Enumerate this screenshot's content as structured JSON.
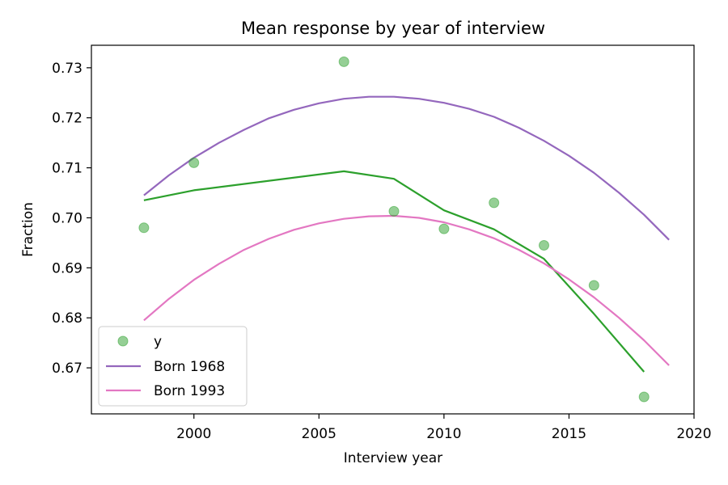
{
  "chart_data": {
    "type": "line",
    "title": "Mean response by year of interview",
    "xlabel": "Interview year",
    "ylabel": "Fraction",
    "xlim": [
      1995.9,
      2020.0
    ],
    "ylim": [
      0.6608,
      0.7345
    ],
    "xticks": [
      2000,
      2005,
      2010,
      2015,
      2020
    ],
    "yticks": [
      0.67,
      0.68,
      0.69,
      0.7,
      0.71,
      0.72,
      0.73
    ],
    "ytick_labels": [
      "0.67",
      "0.68",
      "0.69",
      "0.70",
      "0.71",
      "0.72",
      "0.73"
    ],
    "grid": false,
    "legend_position": "lower-left",
    "scatter": {
      "name": "y",
      "color": "#2ca02c",
      "x": [
        1998,
        2000,
        2006,
        2008,
        2010,
        2012,
        2014,
        2016,
        2018
      ],
      "y": [
        0.698,
        0.711,
        0.7312,
        0.7013,
        0.6978,
        0.703,
        0.6945,
        0.6865,
        0.6642
      ]
    },
    "series": [
      {
        "name": "",
        "color": "#2ca02c",
        "x": [
          1998,
          2000,
          2006,
          2008,
          2010,
          2012,
          2014,
          2016,
          2018
        ],
        "y": [
          0.7035,
          0.7055,
          0.7093,
          0.7078,
          0.7015,
          0.6977,
          0.6918,
          0.6808,
          0.6692
        ]
      },
      {
        "name": "Born 1968",
        "color": "#9467bd",
        "x": [
          1998,
          1999,
          2000,
          2001,
          2002,
          2003,
          2004,
          2005,
          2006,
          2007,
          2008,
          2009,
          2010,
          2011,
          2012,
          2013,
          2014,
          2015,
          2016,
          2017,
          2018,
          2019
        ],
        "y": [
          0.7045,
          0.7085,
          0.712,
          0.715,
          0.7176,
          0.7199,
          0.7216,
          0.7229,
          0.7238,
          0.7242,
          0.7242,
          0.7238,
          0.723,
          0.7218,
          0.7202,
          0.718,
          0.7154,
          0.7124,
          0.709,
          0.705,
          0.7006,
          0.6956
        ]
      },
      {
        "name": "Born 1993",
        "color": "#e377c2",
        "x": [
          1998,
          1999,
          2000,
          2001,
          2002,
          2003,
          2004,
          2005,
          2006,
          2007,
          2008,
          2009,
          2010,
          2011,
          2012,
          2013,
          2014,
          2015,
          2016,
          2017,
          2018,
          2019
        ],
        "y": [
          0.6795,
          0.6838,
          0.6876,
          0.6908,
          0.6936,
          0.6958,
          0.6976,
          0.6989,
          0.6998,
          0.7003,
          0.7004,
          0.7,
          0.6991,
          0.6977,
          0.6959,
          0.6936,
          0.6909,
          0.6877,
          0.6841,
          0.68,
          0.6755,
          0.6705
        ]
      }
    ],
    "legend": [
      {
        "kind": "marker",
        "label": "y",
        "color": "#2ca02c"
      },
      {
        "kind": "line",
        "label": "Born 1968",
        "color": "#9467bd"
      },
      {
        "kind": "line",
        "label": "Born 1993",
        "color": "#e377c2"
      }
    ]
  }
}
